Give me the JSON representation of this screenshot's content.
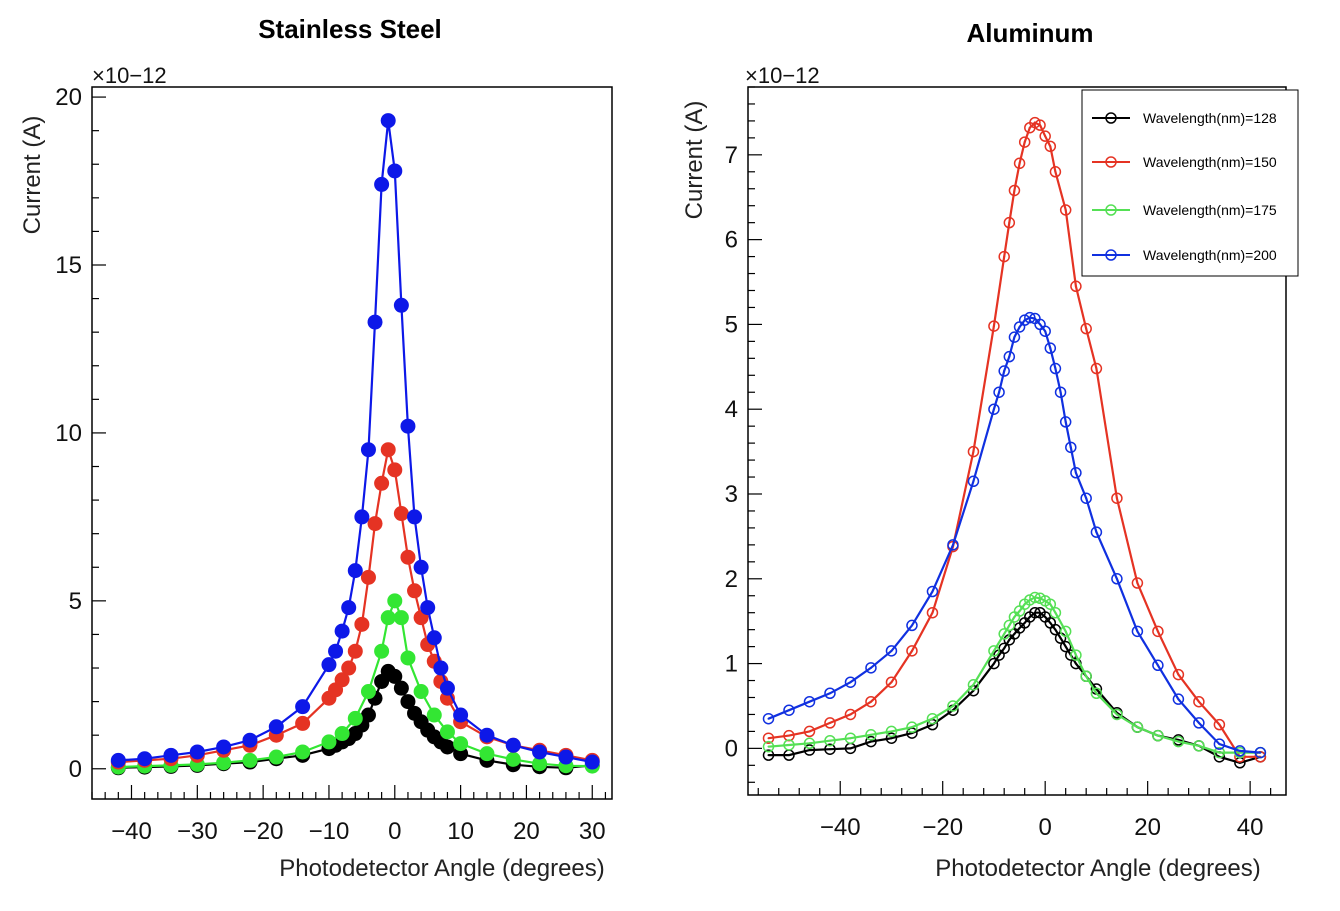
{
  "figure": {
    "description_panels": [
      "Stainless Steel",
      "Aluminum"
    ]
  },
  "chart_data": [
    {
      "type": "line",
      "title": "Stainless Steel",
      "xlabel": "Photodetector Angle (degrees)",
      "ylabel": "Current (A)",
      "exponent": "×10−12",
      "xlim": [
        -46,
        33
      ],
      "ylim": [
        -0.9,
        20.3
      ],
      "xticks": [
        -40,
        -30,
        -20,
        -10,
        0,
        10,
        20,
        30
      ],
      "yticks": [
        0,
        5,
        10,
        15,
        20
      ],
      "marker": "filled",
      "series": [
        {
          "name": "Wavelength(nm)=128",
          "color": "#000000",
          "x": [
            -42,
            -38,
            -34,
            -30,
            -26,
            -22,
            -18,
            -14,
            -10,
            -9,
            -8,
            -7,
            -6,
            -5,
            -4,
            -3,
            -2,
            -1,
            0,
            1,
            2,
            3,
            4,
            5,
            6,
            7,
            8,
            10,
            14,
            18,
            22,
            26,
            30
          ],
          "y": [
            0.03,
            0.05,
            0.07,
            0.1,
            0.15,
            0.2,
            0.3,
            0.4,
            0.6,
            0.7,
            0.8,
            0.9,
            1.05,
            1.3,
            1.6,
            2.1,
            2.6,
            2.9,
            2.75,
            2.4,
            2.0,
            1.65,
            1.4,
            1.15,
            0.95,
            0.8,
            0.65,
            0.45,
            0.25,
            0.12,
            0.06,
            0.03,
            0.1
          ]
        },
        {
          "name": "Wavelength(nm)=175",
          "color": "#33e633",
          "x": [
            -42,
            -38,
            -34,
            -30,
            -26,
            -22,
            -18,
            -14,
            -10,
            -8,
            -6,
            -4,
            -2,
            -1,
            0,
            1,
            2,
            4,
            6,
            8,
            10,
            14,
            18,
            22,
            26,
            30
          ],
          "y": [
            0.05,
            0.08,
            0.1,
            0.13,
            0.18,
            0.25,
            0.35,
            0.5,
            0.8,
            1.05,
            1.5,
            2.3,
            3.5,
            4.5,
            5.0,
            4.5,
            3.3,
            2.3,
            1.6,
            1.1,
            0.75,
            0.45,
            0.28,
            0.15,
            0.09,
            0.08
          ]
        },
        {
          "name": "Wavelength(nm)=150",
          "color": "#e53323",
          "x": [
            -42,
            -38,
            -34,
            -30,
            -26,
            -22,
            -18,
            -14,
            -10,
            -9,
            -8,
            -7,
            -6,
            -5,
            -4,
            -3,
            -2,
            -1,
            0,
            1,
            2,
            3,
            4,
            5,
            6,
            7,
            8,
            10,
            14,
            18,
            22,
            26,
            30
          ],
          "y": [
            0.2,
            0.25,
            0.3,
            0.4,
            0.55,
            0.7,
            1.0,
            1.35,
            2.1,
            2.35,
            2.65,
            3.0,
            3.5,
            4.3,
            5.7,
            7.3,
            8.5,
            9.5,
            8.9,
            7.6,
            6.3,
            5.3,
            4.5,
            3.7,
            3.2,
            2.6,
            2.1,
            1.4,
            0.95,
            0.7,
            0.55,
            0.4,
            0.25
          ]
        },
        {
          "name": "Wavelength(nm)=200",
          "color": "#0d18e8",
          "x": [
            -42,
            -38,
            -34,
            -30,
            -26,
            -22,
            -18,
            -14,
            -10,
            -9,
            -8,
            -7,
            -6,
            -5,
            -4,
            -3,
            -2,
            -1,
            0,
            1,
            2,
            3,
            4,
            5,
            6,
            7,
            8,
            10,
            14,
            18,
            22,
            26,
            30
          ],
          "y": [
            0.25,
            0.3,
            0.4,
            0.5,
            0.65,
            0.85,
            1.25,
            1.85,
            3.1,
            3.5,
            4.1,
            4.8,
            5.9,
            7.5,
            9.5,
            13.3,
            17.4,
            19.3,
            17.8,
            13.8,
            10.2,
            7.5,
            6.0,
            4.8,
            3.9,
            3.0,
            2.4,
            1.6,
            1.0,
            0.7,
            0.5,
            0.35,
            0.2
          ]
        }
      ]
    },
    {
      "type": "line",
      "title": "Aluminum",
      "xlabel": "Photodetector Angle (degrees)",
      "ylabel": "Current (A)",
      "exponent": "×10−12",
      "xlim": [
        -58,
        47
      ],
      "ylim": [
        -0.55,
        7.8
      ],
      "xticks": [
        -40,
        -20,
        0,
        20,
        40
      ],
      "yticks": [
        0,
        1,
        2,
        3,
        4,
        5,
        6,
        7
      ],
      "marker": "open",
      "legend": "top-right",
      "series": [
        {
          "name": "Wavelength(nm)=128",
          "color": "#000000",
          "x": [
            -54,
            -50,
            -46,
            -42,
            -38,
            -34,
            -30,
            -26,
            -22,
            -18,
            -14,
            -10,
            -9,
            -8,
            -7,
            -6,
            -5,
            -4,
            -3,
            -2,
            -1,
            0,
            1,
            2,
            3,
            4,
            5,
            6,
            8,
            10,
            14,
            18,
            22,
            26,
            30,
            34,
            38,
            42
          ],
          "y": [
            -0.08,
            -0.08,
            -0.02,
            -0.01,
            0.0,
            0.08,
            0.12,
            0.18,
            0.28,
            0.45,
            0.68,
            1.0,
            1.1,
            1.18,
            1.28,
            1.35,
            1.42,
            1.48,
            1.55,
            1.6,
            1.6,
            1.55,
            1.48,
            1.4,
            1.3,
            1.2,
            1.1,
            1.0,
            0.85,
            0.7,
            0.42,
            0.25,
            0.15,
            0.1,
            0.03,
            -0.1,
            -0.17,
            -0.1
          ]
        },
        {
          "name": "Wavelength(nm)=150",
          "color": "#e53323",
          "x": [
            -54,
            -50,
            -46,
            -42,
            -38,
            -34,
            -30,
            -26,
            -22,
            -18,
            -14,
            -10,
            -8,
            -7,
            -6,
            -5,
            -4,
            -3,
            -2,
            -1,
            0,
            1,
            2,
            4,
            6,
            8,
            10,
            14,
            18,
            22,
            26,
            30,
            34,
            38,
            42
          ],
          "y": [
            0.12,
            0.15,
            0.2,
            0.3,
            0.4,
            0.55,
            0.78,
            1.15,
            1.6,
            2.38,
            3.5,
            4.98,
            5.8,
            6.2,
            6.58,
            6.9,
            7.15,
            7.32,
            7.38,
            7.35,
            7.22,
            7.1,
            6.8,
            6.35,
            5.45,
            4.95,
            4.48,
            2.95,
            1.95,
            1.38,
            0.87,
            0.55,
            0.28,
            -0.1,
            -0.1
          ]
        },
        {
          "name": "Wavelength(nm)=175",
          "color": "#55e055",
          "x": [
            -54,
            -50,
            -46,
            -42,
            -38,
            -34,
            -30,
            -26,
            -22,
            -18,
            -14,
            -10,
            -8,
            -7,
            -6,
            -5,
            -4,
            -3,
            -2,
            -1,
            0,
            1,
            2,
            4,
            6,
            8,
            10,
            14,
            18,
            22,
            26,
            30,
            34,
            38,
            42
          ],
          "y": [
            0.02,
            0.04,
            0.06,
            0.09,
            0.12,
            0.16,
            0.2,
            0.25,
            0.35,
            0.5,
            0.75,
            1.15,
            1.35,
            1.45,
            1.55,
            1.62,
            1.7,
            1.75,
            1.78,
            1.77,
            1.74,
            1.7,
            1.6,
            1.38,
            1.1,
            0.85,
            0.65,
            0.4,
            0.25,
            0.15,
            0.08,
            0.03,
            -0.05,
            -0.05,
            -0.05
          ]
        },
        {
          "name": "Wavelength(nm)=200",
          "color": "#1030e0",
          "x": [
            -54,
            -50,
            -46,
            -42,
            -38,
            -34,
            -30,
            -26,
            -22,
            -18,
            -14,
            -10,
            -9,
            -8,
            -7,
            -6,
            -5,
            -4,
            -3,
            -2,
            -1,
            0,
            1,
            2,
            3,
            4,
            5,
            6,
            8,
            10,
            14,
            18,
            22,
            26,
            30,
            34,
            38,
            42
          ],
          "y": [
            0.35,
            0.45,
            0.55,
            0.65,
            0.78,
            0.95,
            1.15,
            1.45,
            1.85,
            2.4,
            3.15,
            4.0,
            4.2,
            4.45,
            4.62,
            4.85,
            4.97,
            5.05,
            5.08,
            5.07,
            5.0,
            4.92,
            4.72,
            4.48,
            4.2,
            3.85,
            3.55,
            3.25,
            2.95,
            2.55,
            2.0,
            1.38,
            0.98,
            0.58,
            0.3,
            0.05,
            -0.03,
            -0.05
          ]
        }
      ]
    }
  ]
}
